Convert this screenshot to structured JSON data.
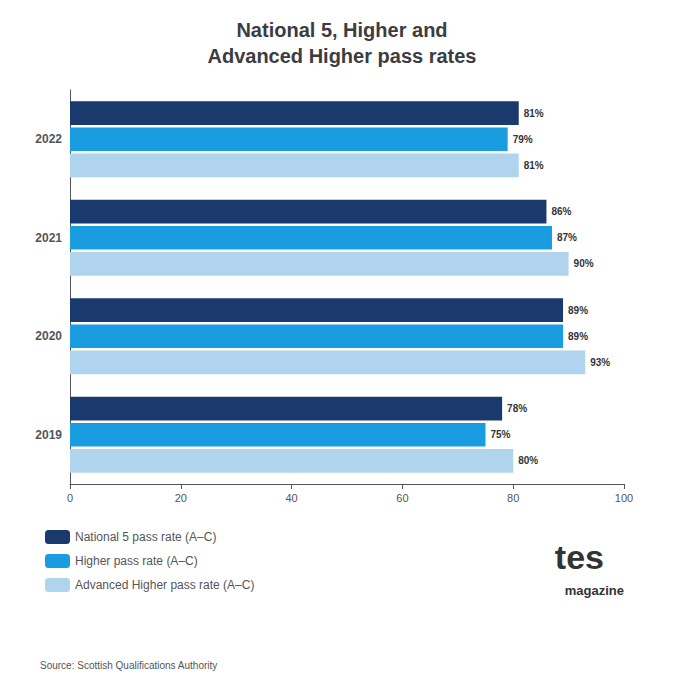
{
  "chart_data": {
    "type": "bar",
    "orientation": "horizontal",
    "title": "National 5, Higher and\nAdvanced Higher pass rates",
    "categories": [
      "2022",
      "2021",
      "2020",
      "2019"
    ],
    "series": [
      {
        "name": "National 5 pass rate (A–C)",
        "color": "#1a3a6e",
        "values": [
          81,
          86,
          89,
          78
        ],
        "value_labels": [
          "81%",
          "86%",
          "89%",
          "78%"
        ]
      },
      {
        "name": "Higher pass rate (A–C)",
        "color": "#1a9de0",
        "values": [
          79,
          87,
          89,
          75
        ],
        "value_labels": [
          "79%",
          "87%",
          "89%",
          "75%"
        ]
      },
      {
        "name": "Advanced Higher pass rate (A–C)",
        "color": "#b0d4ed",
        "values": [
          81,
          90,
          93,
          80
        ],
        "value_labels": [
          "81%",
          "90%",
          "93%",
          "80%"
        ]
      }
    ],
    "xlim": [
      0,
      100
    ],
    "xticks": [
      0,
      20,
      40,
      60,
      80,
      100
    ],
    "grid": false,
    "legend": "lower left",
    "data_labels": true,
    "annotations": [
      "Source: Scottish Qualifications Authority",
      "tes",
      "magazine"
    ]
  }
}
